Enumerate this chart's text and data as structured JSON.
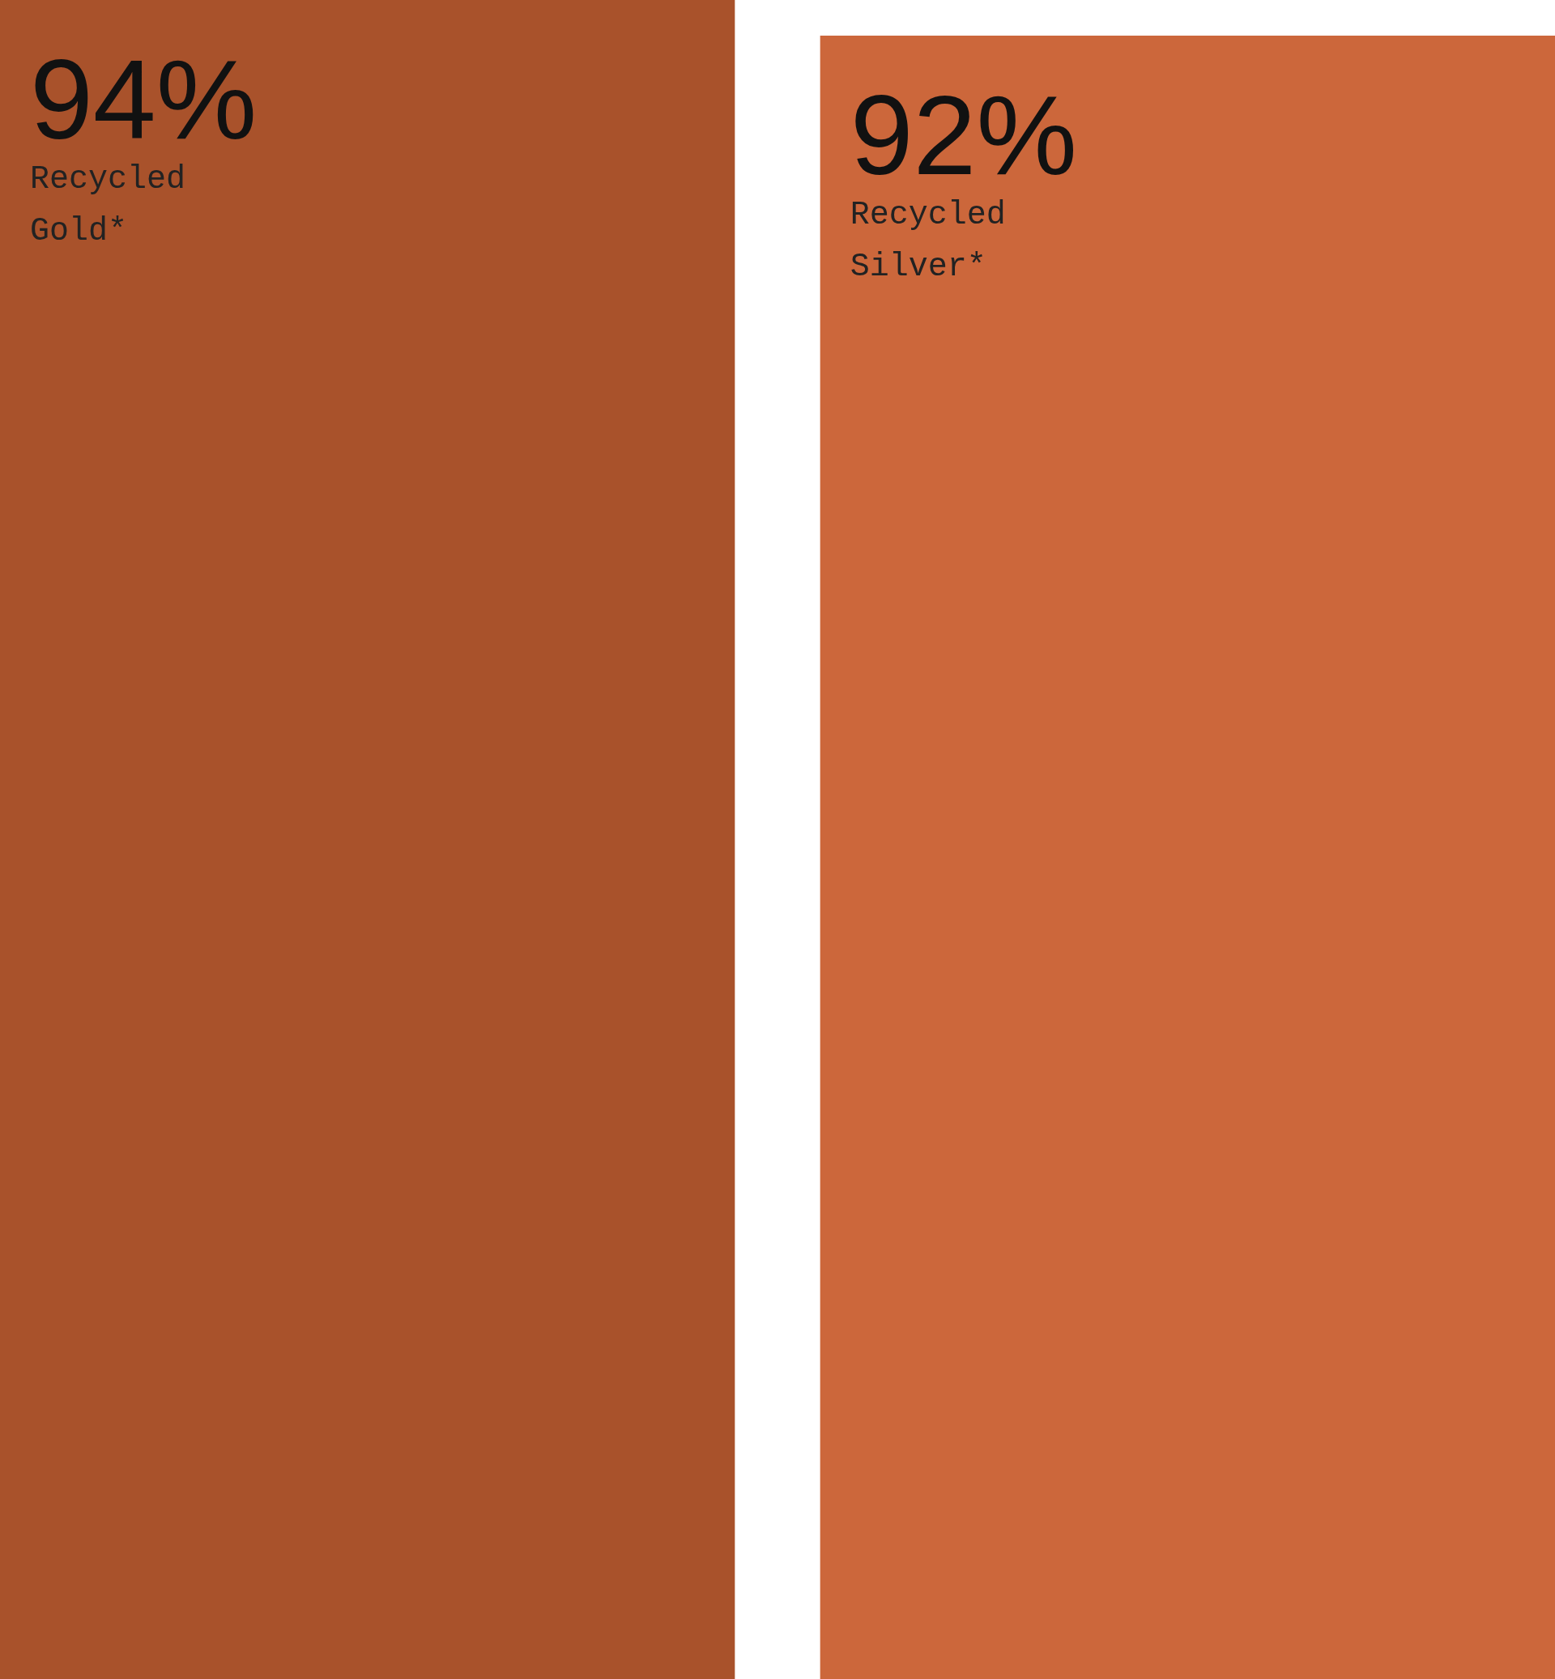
{
  "chart_data": {
    "type": "bar",
    "categories": [
      "Recycled Gold*",
      "Recycled Silver*"
    ],
    "values": [
      94,
      92
    ],
    "colors": [
      "#a9522b",
      "#cc673b"
    ],
    "value_labels": [
      "94%",
      "92%"
    ],
    "tick_labels": false
  }
}
